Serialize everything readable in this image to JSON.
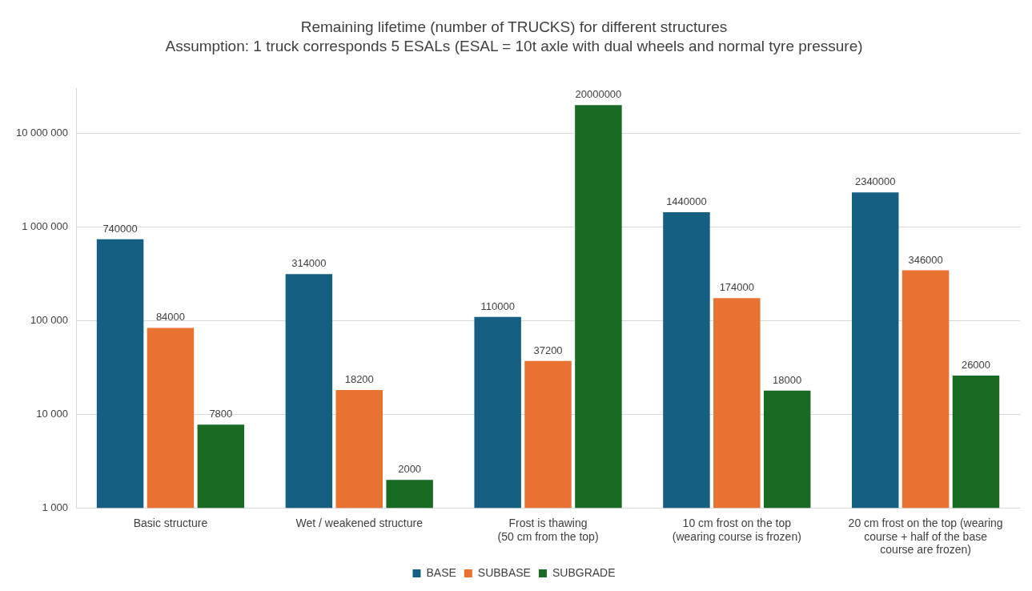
{
  "chart_data": {
    "type": "bar",
    "title": "Remaining lifetime (number of TRUCKS) for different structures",
    "subtitle": "Assumption: 1 truck corresponds 5 ESALs (ESAL = 10t axle with dual wheels and normal tyre pressure)",
    "categories": [
      "Basic structure",
      "Wet / weakened structure",
      "Frost is thawing\n(50 cm from the top)",
      "10 cm frost on the top\n(wearing course is frozen)",
      "20 cm frost on the top (wearing\ncourse + half of the base\ncourse are frozen)"
    ],
    "series": [
      {
        "name": "BASE",
        "color": "#156082",
        "values": [
          740000,
          314000,
          110000,
          1440000,
          2340000
        ]
      },
      {
        "name": "SUBBASE",
        "color": "#e97132",
        "values": [
          84000,
          18200,
          37200,
          174000,
          346000
        ]
      },
      {
        "name": "SUBGRADE",
        "color": "#196b24",
        "values": [
          7800,
          2000,
          20000000,
          18000,
          26000
        ]
      }
    ],
    "log": true,
    "ylim": [
      1000,
      30000000
    ],
    "yticks": [
      {
        "value": 1000,
        "label": "1 000"
      },
      {
        "value": 10000,
        "label": "10 000"
      },
      {
        "value": 100000,
        "label": "100 000"
      },
      {
        "value": 1000000,
        "label": "1 000 000"
      },
      {
        "value": 10000000,
        "label": "10 000 000"
      }
    ],
    "grid": "y",
    "legend": "bottom",
    "data_labels": true
  }
}
